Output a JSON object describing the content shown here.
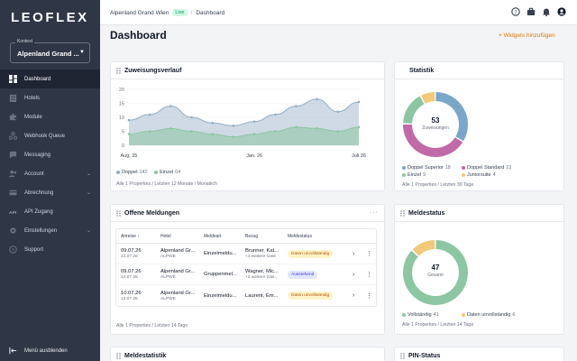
{
  "brand": "LEOFLEX",
  "context": {
    "label": "Kontext",
    "value": "Alpenland Grand ..."
  },
  "nav": [
    {
      "label": "Dashboard",
      "icon": "dashboard-icon",
      "active": true
    },
    {
      "label": "Hotels",
      "icon": "building-icon"
    },
    {
      "label": "Module",
      "icon": "puzzle-icon"
    },
    {
      "label": "Webhook Queue",
      "icon": "webhook-icon"
    },
    {
      "label": "Messaging",
      "icon": "chat-icon"
    },
    {
      "label": "Account",
      "icon": "users-icon",
      "expandable": true
    },
    {
      "label": "Abrechnung",
      "icon": "invoice-icon",
      "expandable": true
    },
    {
      "label": "API Zugang",
      "icon": "api-icon"
    },
    {
      "label": "Einstellungen",
      "icon": "gear-icon",
      "expandable": true
    },
    {
      "label": "Support",
      "icon": "help-icon"
    }
  ],
  "hide_menu": "Menü ausblenden",
  "breadcrumb": {
    "hotel": "Alpenland Grand Wien",
    "badge": "Live",
    "page": "Dashboard"
  },
  "title": "Dashboard",
  "add_widget": "+ Widgets hinzufügen",
  "zuweisung": {
    "title": "Zuweisungsverlauf",
    "legend": [
      {
        "name": "Doppel",
        "value": "142"
      },
      {
        "name": "Einzel",
        "value": "64"
      }
    ],
    "footer": "Alle 1 Properties / Letzten 12 Monate / Monatlich"
  },
  "statistik": {
    "title": "Statistik",
    "total": "53",
    "total_label": "Zuweisungen",
    "legend": [
      {
        "name": "Doppel Superior",
        "value": "18"
      },
      {
        "name": "Doppel Standard",
        "value": "22"
      },
      {
        "name": "Einzel",
        "value": "9"
      },
      {
        "name": "Juniorsuite",
        "value": "4"
      }
    ],
    "footer": "Alle 1 Properties / Letzten 30 Tage"
  },
  "meldungen": {
    "title": "Offene Meldungen",
    "more": "···",
    "columns": [
      "Anreise ↑",
      "Hotel",
      "Meldeart",
      "Bezug",
      "Meldestatus"
    ],
    "rows": [
      {
        "arrival": "09.07.26",
        "departure": "12.07.26",
        "hotel": "Alpenland Gr...",
        "hotel_code": "ALPWE",
        "type": "Einzelmeldu...",
        "ref": "Brunner, Kat...",
        "ref_sub": "+1 weitere Gast",
        "status": "Daten unvollständig",
        "status_kind": "warn"
      },
      {
        "arrival": "09.07.26",
        "departure": "12.07.26",
        "hotel": "Alpenland Gr...",
        "hotel_code": "ALPWE",
        "type": "Gruppenmel...",
        "ref": "Wagner, Mic...",
        "ref_sub": "+2 weitere Gäs...",
        "status": "Ausstehend",
        "status_kind": "info"
      },
      {
        "arrival": "10.07.26",
        "departure": "13.07.26",
        "hotel": "Alpenland Gr...",
        "hotel_code": "ALPWE",
        "type": "Einzelmeldu...",
        "ref": "Laurent, Em...",
        "ref_sub": "",
        "status": "Daten unvollständig",
        "status_kind": "warn"
      }
    ],
    "footer": "Alle 1 Properties / Letzten 14 Tage"
  },
  "meldestatus": {
    "title": "Meldestatus",
    "total": "47",
    "total_label": "Gesamt",
    "legend": [
      {
        "name": "Vollständig",
        "value": "41"
      },
      {
        "name": "Daten unvollständig",
        "value": "6"
      }
    ],
    "footer": "Alle 1 Properties / Letzten 14 Tage"
  },
  "meldestatistik": {
    "title": "Meldestatistik"
  },
  "pinstatus": {
    "title": "PIN-Status"
  },
  "colors": {
    "doppel": "#94aec6",
    "einzel": "#8cc6a2",
    "superior": "#7aa7c7",
    "standard": "#c06aa8",
    "einzel_donut": "#8cc6a2",
    "junior": "#f0c97a",
    "accent": "#d97706"
  },
  "chart_data": {
    "type": "area",
    "x_tick_labels": [
      "Aug. 25",
      "Jan. 26",
      "Juli 26"
    ],
    "y_tick_labels": [
      "0",
      "5",
      "10",
      "15",
      "20"
    ],
    "ylim": [
      0,
      20
    ],
    "series": [
      {
        "name": "Doppel",
        "values": [
          9,
          11,
          14,
          10,
          8,
          7,
          8.5,
          11,
          14,
          16.5,
          12,
          15.5
        ]
      },
      {
        "name": "Einzel",
        "values": [
          4,
          5,
          6,
          5,
          4,
          3,
          4,
          5,
          6.5,
          6,
          5,
          6.5
        ]
      }
    ]
  }
}
